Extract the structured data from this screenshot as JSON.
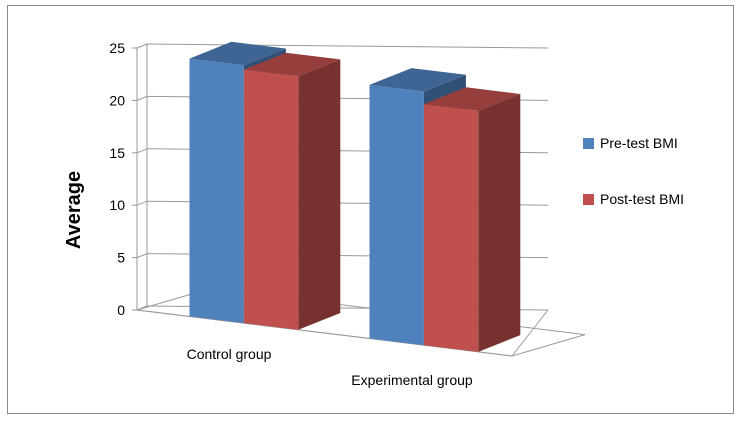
{
  "chart_data": {
    "type": "bar",
    "style": "3d-clustered-column",
    "title": "",
    "xlabel": "",
    "ylabel": "Average",
    "ylim": [
      0,
      25
    ],
    "yticks": [
      0,
      5,
      10,
      15,
      20,
      25
    ],
    "categories": [
      "Control group",
      "Experimental group"
    ],
    "series": [
      {
        "name": "Pre-test BMI",
        "color": "#4F81BD",
        "values": [
          24.6,
          24.2
        ]
      },
      {
        "name": "Post-test BMI",
        "color": "#C0504D",
        "values": [
          24.2,
          23.0
        ]
      }
    ],
    "grid": true,
    "legend_position": "right"
  }
}
